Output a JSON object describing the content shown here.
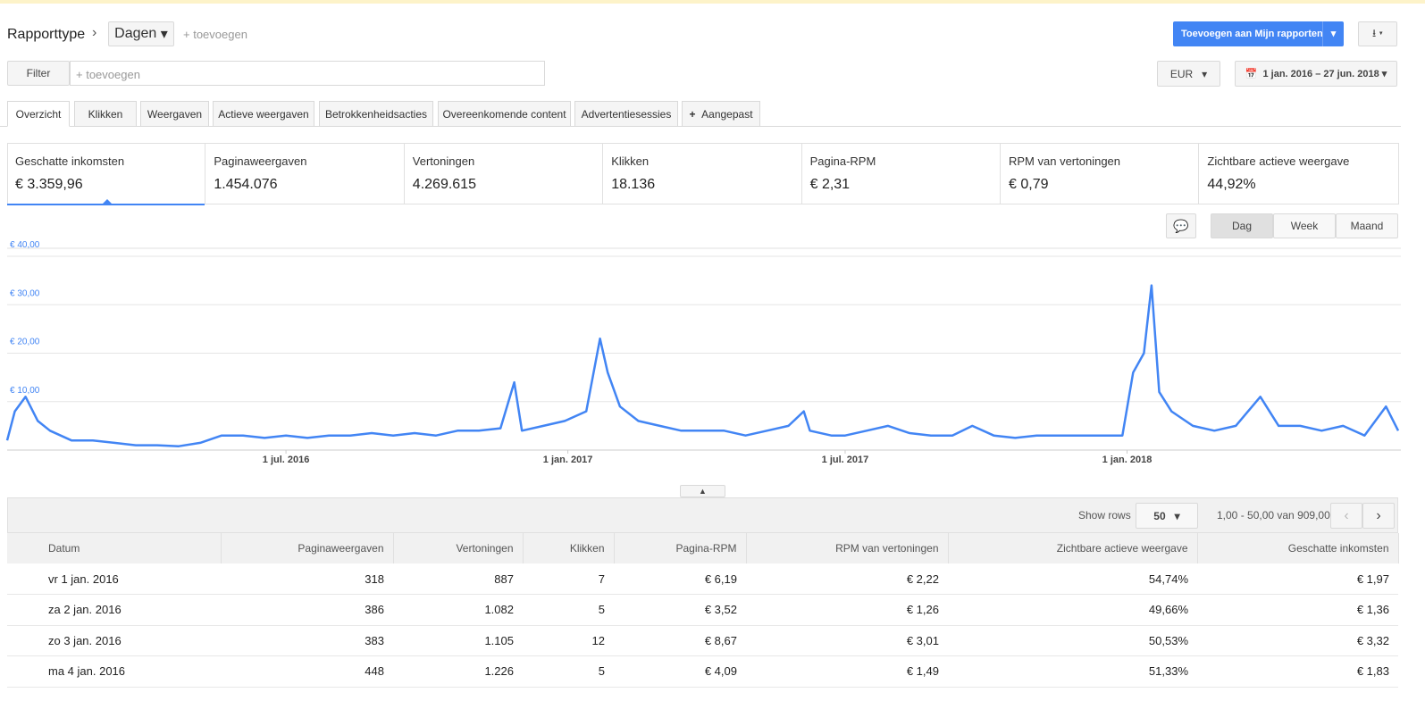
{
  "header": {
    "breadcrumb": "Rapporttype",
    "dimension": "Dagen",
    "add_dimension": "+ toevoegen",
    "add_report_button": "Toevoegen aan Mijn rapporten"
  },
  "filter": {
    "label": "Filter",
    "placeholder": "+ toevoegen",
    "currency": "EUR",
    "date_range": "1 jan. 2016 – 27 jun. 2018"
  },
  "tabs": [
    "Overzicht",
    "Klikken",
    "Weergaven",
    "Actieve weergaven",
    "Betrokkenheidsacties",
    "Overeenkomende content",
    "Advertentiesessies",
    "Aangepast"
  ],
  "metrics": [
    {
      "label": "Geschatte inkomsten",
      "value": "€ 3.359,96"
    },
    {
      "label": "Paginaweergaven",
      "value": "1.454.076"
    },
    {
      "label": "Vertoningen",
      "value": "4.269.615"
    },
    {
      "label": "Klikken",
      "value": "18.136"
    },
    {
      "label": "Pagina-RPM",
      "value": "€ 2,31"
    },
    {
      "label": "RPM van vertoningen",
      "value": "€ 0,79"
    },
    {
      "label": "Zichtbare actieve weergave",
      "value": "44,92%"
    }
  ],
  "granularity": [
    "Dag",
    "Week",
    "Maand"
  ],
  "chart_data": {
    "type": "line",
    "x": [
      0,
      5,
      12,
      20,
      28,
      42,
      56,
      70,
      84,
      98,
      112,
      126,
      140,
      154,
      168,
      182,
      196,
      210,
      224,
      238,
      252,
      266,
      280,
      294,
      308,
      322,
      331,
      336,
      350,
      364,
      378,
      387,
      392,
      400,
      412,
      426,
      440,
      454,
      468,
      482,
      496,
      510,
      520,
      524,
      538,
      547,
      561,
      575,
      589,
      603,
      617,
      630,
      644,
      658,
      672,
      686,
      700,
      714,
      728,
      735,
      742,
      747,
      752,
      760,
      774,
      788,
      802,
      818,
      830,
      844,
      858,
      872,
      886,
      900,
      908
    ],
    "series": [
      {
        "name": "Geschatte inkomsten",
        "color": "#4285f4",
        "values": [
          2,
          8,
          11,
          6,
          4,
          2,
          2,
          1.5,
          1,
          1,
          0.8,
          1.5,
          3,
          3,
          2.5,
          3,
          2.5,
          3,
          3,
          3.5,
          3,
          3.5,
          3,
          4,
          4,
          4.5,
          14,
          4,
          5,
          6,
          8,
          23,
          16,
          9,
          6,
          5,
          4,
          4,
          4,
          3,
          4,
          5,
          8,
          4,
          3,
          3,
          4,
          5,
          3.5,
          3,
          3,
          5,
          3,
          2.5,
          3,
          3,
          3,
          3,
          3,
          16,
          20,
          34,
          12,
          8,
          5,
          4,
          5,
          11,
          5,
          5,
          4,
          5,
          3,
          9,
          4
        ]
      }
    ],
    "xlim": [
      0,
      908
    ],
    "xticks": [
      {
        "value": 182,
        "label": "1 jul. 2016"
      },
      {
        "value": 366,
        "label": "1 jan. 2017"
      },
      {
        "value": 547,
        "label": "1 jul. 2017"
      },
      {
        "value": 731,
        "label": "1 jan. 2018"
      }
    ],
    "ylim": [
      0,
      40
    ],
    "yticks": [
      {
        "value": 10,
        "label": "€ 10,00"
      },
      {
        "value": 20,
        "label": "€ 20,00"
      },
      {
        "value": 30,
        "label": "€ 30,00"
      },
      {
        "value": 40,
        "label": "€ 40,00"
      }
    ],
    "grid": true
  },
  "table": {
    "show_rows_label": "Show rows",
    "rows_per_page": "50",
    "pagination": "1,00 - 50,00 van 909,00",
    "columns": [
      "Datum",
      "Paginaweergaven",
      "Vertoningen",
      "Klikken",
      "Pagina-RPM",
      "RPM van vertoningen",
      "Zichtbare actieve weergave",
      "Geschatte inkomsten"
    ],
    "rows": [
      [
        "vr 1 jan. 2016",
        "318",
        "887",
        "7",
        "€ 6,19",
        "€ 2,22",
        "54,74%",
        "€ 1,97"
      ],
      [
        "za 2 jan. 2016",
        "386",
        "1.082",
        "5",
        "€ 3,52",
        "€ 1,26",
        "49,66%",
        "€ 1,36"
      ],
      [
        "zo 3 jan. 2016",
        "383",
        "1.105",
        "12",
        "€ 8,67",
        "€ 3,01",
        "50,53%",
        "€ 3,32"
      ],
      [
        "ma 4 jan. 2016",
        "448",
        "1.226",
        "5",
        "€ 4,09",
        "€ 1,49",
        "51,33%",
        "€ 1,83"
      ]
    ]
  }
}
